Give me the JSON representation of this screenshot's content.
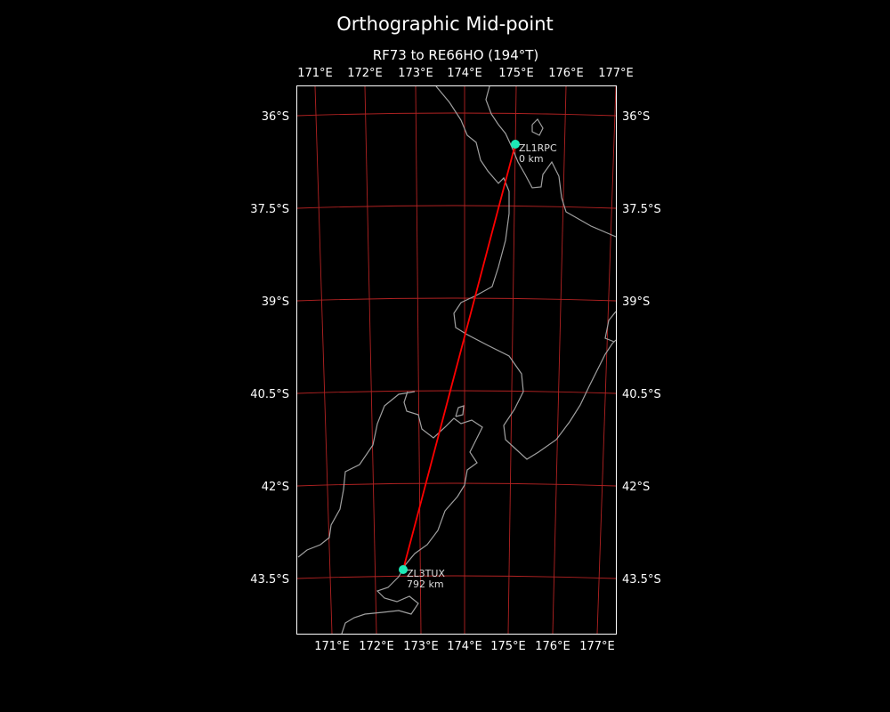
{
  "title": "Orthographic Mid-point",
  "subtitle": "RF73 to RE66HO (194°T)",
  "lon_labels": [
    "171°E",
    "172°E",
    "173°E",
    "174°E",
    "175°E",
    "176°E",
    "177°E"
  ],
  "lat_labels": [
    "36°S",
    "37.5°S",
    "39°S",
    "40.5°S",
    "42°S",
    "43.5°S"
  ],
  "stations": [
    {
      "call": "ZL1RPC",
      "distance": "0 km"
    },
    {
      "call": "ZL3TUX",
      "distance": "792 km"
    }
  ],
  "colors": {
    "background": "#000000",
    "gridlines": "#b22222",
    "coastline": "#a0a0a0",
    "path": "#ff0000",
    "station_marker": "#1de9b6"
  }
}
